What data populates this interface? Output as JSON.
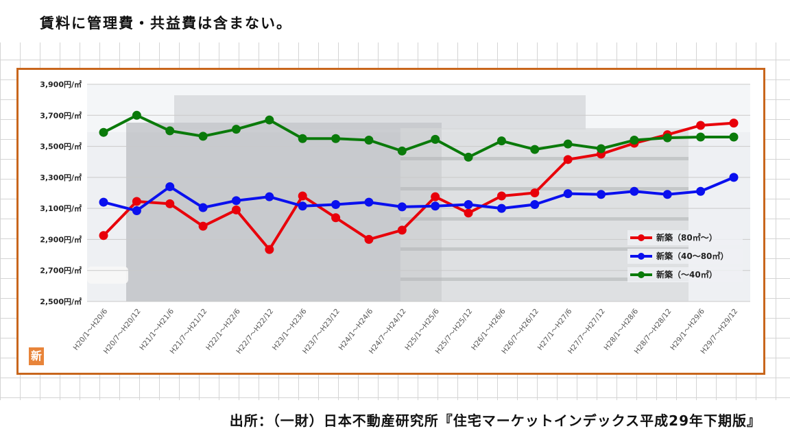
{
  "header": {
    "note": "賃料に管理費・共益費は含まない。"
  },
  "footer": {
    "source": "出所：（一財）日本不動産研究所『住宅マーケットインデックス平成29年下期版』"
  },
  "logo": {
    "char": "新"
  },
  "colors": {
    "frame": "#c8661c",
    "red": "#e8000a",
    "blue": "#0a10ee",
    "green": "#0a7a0a"
  },
  "chart_data": {
    "type": "line",
    "ylim": [
      2500,
      3900
    ],
    "yticks": [
      2500,
      2700,
      2900,
      3100,
      3300,
      3500,
      3700,
      3900
    ],
    "ytick_labels": [
      "2,500円/㎡",
      "2,700円/㎡",
      "2,900円/㎡",
      "3,100円/㎡",
      "3,300円/㎡",
      "3,500円/㎡",
      "3,700円/㎡",
      "3,900円/㎡"
    ],
    "categories": [
      "H20/1～H20/6",
      "H20/7～H20/12",
      "H21/1～H21/6",
      "H21/7～H21/12",
      "H22/1～H22/6",
      "H22/7～H22/12",
      "H23/1～H23/6",
      "H23/7～H23/12",
      "H24/1～H24/6",
      "H24/7～H24/12",
      "H25/1～H25/6",
      "H25/7～H25/12",
      "H26/1～H26/6",
      "H26/7～H26/12",
      "H27/1～H27/6",
      "H27/7～H27/12",
      "H28/1～H28/6",
      "H28/7～H28/12",
      "H29/1～H29/6",
      "H29/7～H29/12"
    ],
    "series": [
      {
        "name": "新築（80㎡～）",
        "color": "#e8000a",
        "values": [
          2925,
          3145,
          3130,
          2985,
          3090,
          2835,
          3180,
          3040,
          2900,
          2960,
          3175,
          3070,
          3180,
          3200,
          3415,
          3450,
          3520,
          3575,
          3635,
          3650
        ]
      },
      {
        "name": "新築（40～80㎡）",
        "color": "#0a10ee",
        "values": [
          3140,
          3085,
          3240,
          3105,
          3150,
          3175,
          3115,
          3125,
          3140,
          3110,
          3115,
          3125,
          3100,
          3125,
          3195,
          3190,
          3210,
          3190,
          3210,
          3300
        ]
      },
      {
        "name": "新築（～40㎡）",
        "color": "#0a7a0a",
        "values": [
          3590,
          3700,
          3600,
          3565,
          3610,
          3670,
          3550,
          3550,
          3540,
          3470,
          3545,
          3430,
          3535,
          3480,
          3515,
          3485,
          3540,
          3555,
          3560,
          3560
        ]
      }
    ],
    "legend_position": "right",
    "grid": true
  }
}
